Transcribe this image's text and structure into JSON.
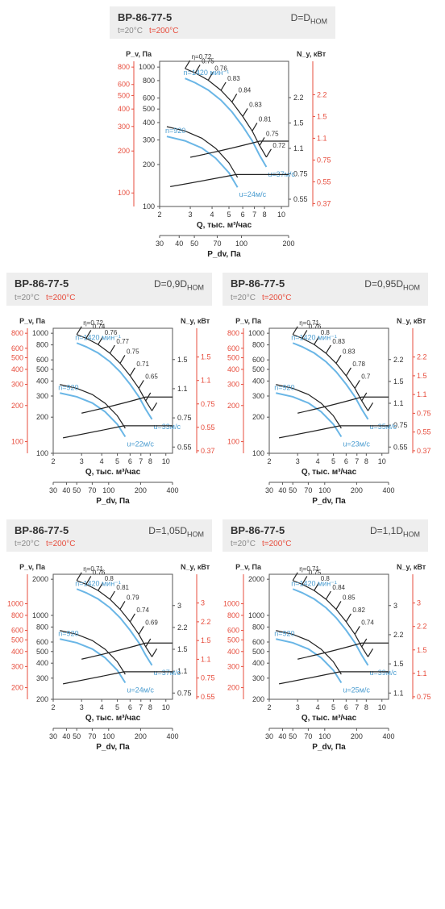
{
  "panels": [
    {
      "id": "p1",
      "layout": "full",
      "title": "ВР-86-77-5",
      "d_label": "D=D",
      "d_sub": "НОМ",
      "t20": "t=20°C",
      "t200": "t=200°C",
      "y_left_label": "P_v, Па",
      "y_right_label": "N_у, кВт",
      "x_label": "Q, тыс. м³/час",
      "x2_label": "P_dv, Па",
      "ylim": [
        100,
        1100
      ],
      "xlim": [
        2,
        11
      ],
      "y_ticks": [
        100,
        200,
        300,
        400,
        500,
        600,
        800,
        1000
      ],
      "y_red_ticks": [
        100,
        200,
        300,
        400,
        500,
        600,
        800
      ],
      "x_ticks": [
        2,
        3,
        4,
        5,
        6,
        7,
        8,
        10
      ],
      "x2_ticks": [
        30,
        40,
        50,
        70,
        100,
        200
      ],
      "ny_ticks": [
        0.55,
        0.75,
        1.1,
        1.5,
        2.2
      ],
      "ny_red_ticks": [
        0.37,
        0.55,
        0.75,
        1.1,
        1.5,
        2.2
      ],
      "eta_values": [
        "η=0.72",
        "0.75",
        "0.76",
        "0.83",
        "0.84",
        "0.83",
        "0.81",
        "0.75",
        "0.72"
      ],
      "n_labels": [
        "n=1420 мин⁻¹",
        "n=920"
      ],
      "u_labels": [
        "u=37м/c",
        "u=24м/c"
      ]
    },
    {
      "id": "p2",
      "layout": "half",
      "title": "ВР-86-77-5",
      "d_label": "D=0,9D",
      "d_sub": "НОМ",
      "t20": "t=20°C",
      "t200": "t=200°C",
      "y_left_label": "P_v, Па",
      "y_right_label": "N_у, кВт",
      "x_label": "Q, тыс. м³/час",
      "x2_label": "P_dv, Па",
      "ylim": [
        100,
        1100
      ],
      "xlim": [
        2,
        11
      ],
      "y_ticks": [
        100,
        200,
        300,
        400,
        500,
        600,
        800,
        1000
      ],
      "y_red_ticks": [
        100,
        200,
        300,
        400,
        500,
        600,
        800
      ],
      "x_ticks": [
        2,
        3,
        4,
        5,
        6,
        7,
        8,
        10
      ],
      "x2_ticks": [
        30,
        40,
        50,
        70,
        100,
        200,
        400
      ],
      "ny_ticks": [
        0.55,
        0.75,
        1.1,
        1.5
      ],
      "ny_red_ticks": [
        0.37,
        0.55,
        0.75,
        1.1,
        1.5
      ],
      "eta_values": [
        "η=0.72",
        "0.74",
        "0.76",
        "0.77",
        "0.75",
        "0.71",
        "0.65"
      ],
      "n_labels": [
        "n=1420 мин⁻¹",
        "n=920"
      ],
      "u_labels": [
        "u=33м/c",
        "u=22м/c"
      ]
    },
    {
      "id": "p3",
      "layout": "half",
      "title": "ВР-86-77-5",
      "d_label": "D=0,95D",
      "d_sub": "НОМ",
      "t20": "t=20°C",
      "t200": "t=200°C",
      "y_left_label": "P_v, Па",
      "y_right_label": "N_у, кВт",
      "x_label": "Q, тыс. м³/час",
      "x2_label": "P_dv, Па",
      "ylim": [
        100,
        1100
      ],
      "xlim": [
        2,
        11
      ],
      "y_ticks": [
        100,
        200,
        300,
        400,
        500,
        600,
        800,
        1000
      ],
      "y_red_ticks": [
        100,
        200,
        300,
        400,
        500,
        600,
        800
      ],
      "x_ticks": [
        2,
        3,
        4,
        5,
        6,
        7,
        8,
        10
      ],
      "x2_ticks": [
        30,
        40,
        50,
        70,
        100,
        200,
        400
      ],
      "ny_ticks": [
        0.55,
        0.75,
        1.1,
        1.5,
        2.2
      ],
      "ny_red_ticks": [
        0.37,
        0.55,
        0.75,
        1.1,
        1.5,
        2.2
      ],
      "eta_values": [
        "η=0.71",
        "0.76",
        "0.8",
        "0.83",
        "0.83",
        "0.78",
        "0.7"
      ],
      "n_labels": [
        "n=1420 мин⁻¹",
        "n=920"
      ],
      "u_labels": [
        "u=35м/c",
        "u=23м/c"
      ]
    },
    {
      "id": "p4",
      "layout": "half",
      "title": "ВР-86-77-5",
      "d_label": "D=1,05D",
      "d_sub": "НОМ",
      "t20": "t=20°C",
      "t200": "t=200°C",
      "y_left_label": "P_v, Па",
      "y_right_label": "N_у, кВт",
      "x_label": "Q, тыс. м³/час",
      "x2_label": "P_dv, Па",
      "ylim": [
        200,
        2200
      ],
      "xlim": [
        2,
        11
      ],
      "y_ticks": [
        200,
        300,
        400,
        500,
        600,
        800,
        1000,
        2000
      ],
      "y_red_ticks": [
        200,
        300,
        400,
        500,
        600,
        800,
        1000
      ],
      "x_ticks": [
        2,
        3,
        4,
        5,
        6,
        7,
        8,
        10
      ],
      "x2_ticks": [
        30,
        40,
        50,
        70,
        100,
        200,
        400
      ],
      "ny_ticks": [
        0.75,
        1.1,
        1.5,
        2.2,
        3.0
      ],
      "ny_red_ticks": [
        0.55,
        0.75,
        1.1,
        1.5,
        2.2,
        3.0
      ],
      "eta_values": [
        "η=0.71",
        "0.76",
        "0.8",
        "0.81",
        "0.79",
        "0.74",
        "0.69"
      ],
      "n_labels": [
        "n=1420 мин⁻¹",
        "n=920"
      ],
      "u_labels": [
        "u=37м/c",
        "u=24м/c"
      ]
    },
    {
      "id": "p5",
      "layout": "half",
      "title": "ВР-86-77-5",
      "d_label": "D=1,1D",
      "d_sub": "НОМ",
      "t20": "t=20°C",
      "t200": "t=200°C",
      "y_left_label": "P_v, Па",
      "y_right_label": "N_у, кВт",
      "x_label": "Q, тыс. м³/час",
      "x2_label": "P_dv, Па",
      "ylim": [
        200,
        2200
      ],
      "xlim": [
        2,
        11
      ],
      "y_ticks": [
        200,
        300,
        400,
        500,
        600,
        800,
        1000,
        2000
      ],
      "y_red_ticks": [
        200,
        300,
        400,
        500,
        600,
        800,
        1000
      ],
      "x_ticks": [
        2,
        3,
        4,
        5,
        6,
        7,
        8,
        10
      ],
      "x2_ticks": [
        30,
        40,
        50,
        70,
        100,
        200,
        400
      ],
      "ny_ticks": [
        1.1,
        1.5,
        2.2,
        3.0
      ],
      "ny_red_ticks": [
        0.75,
        1.1,
        1.5,
        2.2,
        3.0
      ],
      "eta_values": [
        "η=0.71",
        "0.75",
        "0.8",
        "0.84",
        "0.85",
        "0.82",
        "0.74"
      ],
      "n_labels": [
        "n=1420 мин⁻¹",
        "n=920"
      ],
      "u_labels": [
        "u=39м/c",
        "u=25м/c"
      ]
    }
  ],
  "colors": {
    "black": "#222222",
    "blue": "#6ab6e6",
    "blue_text": "#4a9cd0",
    "red": "#e74c3c",
    "grey_bg": "#eeeeee",
    "grid": "#cccccc"
  }
}
